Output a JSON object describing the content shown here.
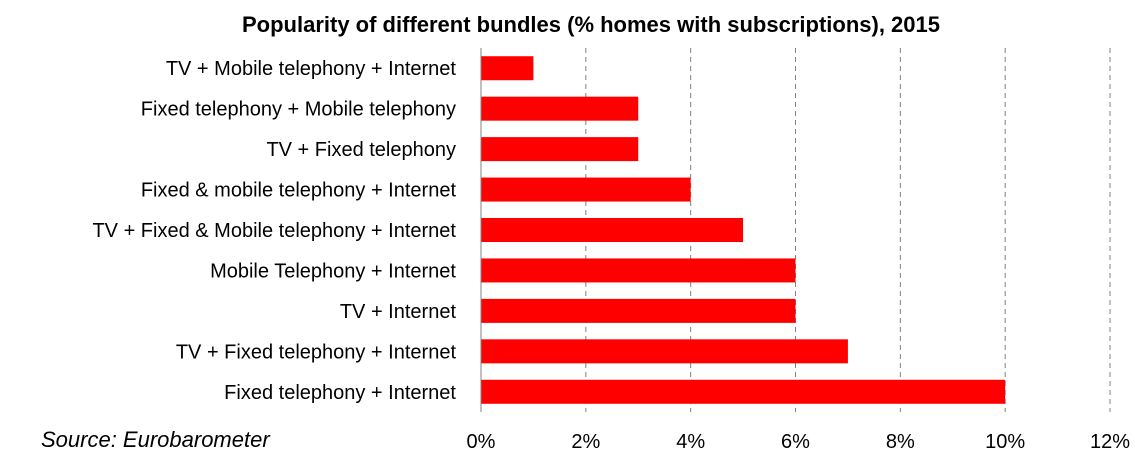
{
  "chart_data": {
    "type": "bar",
    "orientation": "horizontal",
    "title": "Popularity of different bundles (% homes with subscriptions), 2015",
    "categories": [
      "TV + Mobile telephony + Internet",
      "Fixed telephony + Mobile telephony",
      "TV + Fixed telephony",
      "Fixed & mobile telephony + Internet",
      "TV + Fixed & Mobile telephony + Internet",
      "Mobile Telephony + Internet",
      "TV + Internet",
      "TV + Fixed telephony + Internet",
      "Fixed telephony + Internet"
    ],
    "values": [
      1,
      3,
      3,
      4,
      5,
      6,
      6,
      7,
      10
    ],
    "xlim": [
      0,
      12
    ],
    "x_ticks": [
      0,
      2,
      4,
      6,
      8,
      10,
      12
    ],
    "x_tick_labels": [
      "0%",
      "2%",
      "4%",
      "6%",
      "8%",
      "10%",
      "12%"
    ],
    "xlabel": "",
    "ylabel": "",
    "grid": "vertical-dashed",
    "bar_color": "#ff0000",
    "source_note": "Source: Eurobarometer"
  }
}
